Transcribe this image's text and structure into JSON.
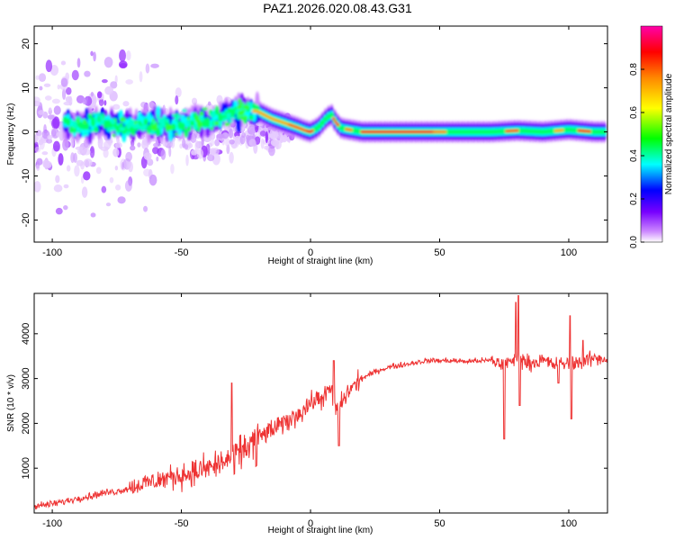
{
  "title": "PAZ1.2026.020.08.43.G31",
  "chart_data": [
    {
      "type": "heatmap",
      "title": "PAZ1.2026.020.08.43.G31",
      "xlabel": "Height of straight line (km)",
      "ylabel": "Frequency (Hz)",
      "xlim": [
        -107,
        115
      ],
      "ylim": [
        -25,
        24
      ],
      "xticks": [
        -100,
        -50,
        0,
        50,
        100
      ],
      "yticks": [
        -20,
        -10,
        0,
        10,
        20
      ],
      "colorbar": {
        "label": "Normalized spectral amplitude",
        "range": [
          0,
          1
        ],
        "ticks": [
          0.0,
          0.2,
          0.4,
          0.6,
          0.8
        ],
        "tick_labels": [
          "0.0",
          "0.2",
          "0.4",
          "0.6",
          "0.8"
        ],
        "colors": [
          "#ffffff",
          "#cc88ff",
          "#7700ff",
          "#0000ff",
          "#00ffff",
          "#00ff00",
          "#ffff00",
          "#ff8800",
          "#ff0000",
          "#ff00aa"
        ]
      },
      "ridge": {
        "x": [
          -90,
          -80,
          -70,
          -60,
          -50,
          -40,
          -30,
          -25,
          -20,
          -15,
          -10,
          -5,
          -2,
          0,
          3,
          6,
          8,
          10,
          12,
          15,
          20,
          30,
          40,
          50,
          60,
          70,
          80,
          90,
          100,
          110,
          115
        ],
        "y": [
          1.5,
          2,
          1.5,
          2,
          2,
          2.5,
          4,
          5,
          4.5,
          3,
          2,
          1,
          0.3,
          0,
          1,
          3,
          4,
          2,
          0.8,
          0.5,
          0,
          0,
          0,
          0,
          0,
          0,
          0.3,
          0,
          0.5,
          0,
          0
        ]
      }
    },
    {
      "type": "line",
      "xlabel": "Height of straight line (km)",
      "ylabel": "SNR (10 * v/v)",
      "xlim": [
        -107,
        115
      ],
      "ylim": [
        0,
        4900
      ],
      "xticks": [
        -100,
        -50,
        0,
        50,
        100
      ],
      "yticks": [
        1000,
        2000,
        3000,
        4000
      ],
      "color": "#ee3333",
      "series": [
        {
          "name": "SNR",
          "x": [
            -107,
            -100,
            -95,
            -90,
            -85,
            -80,
            -75,
            -70,
            -65,
            -60,
            -55,
            -50,
            -45,
            -40,
            -35,
            -30,
            -25,
            -20,
            -15,
            -10,
            -5,
            0,
            5,
            8,
            10,
            12,
            15,
            20,
            25,
            30,
            35,
            40,
            45,
            50,
            55,
            60,
            65,
            70,
            75,
            80,
            85,
            90,
            95,
            100,
            105,
            110,
            115
          ],
          "y": [
            150,
            200,
            260,
            330,
            380,
            450,
            480,
            560,
            650,
            720,
            780,
            850,
            900,
            1000,
            1100,
            1250,
            1450,
            1700,
            1850,
            2000,
            2200,
            2450,
            2600,
            2750,
            2250,
            2450,
            2750,
            3000,
            3150,
            3250,
            3300,
            3350,
            3400,
            3400,
            3400,
            3380,
            3400,
            3400,
            3300,
            3450,
            3350,
            3400,
            3300,
            3350,
            3380,
            3450,
            3450
          ]
        }
      ]
    }
  ]
}
